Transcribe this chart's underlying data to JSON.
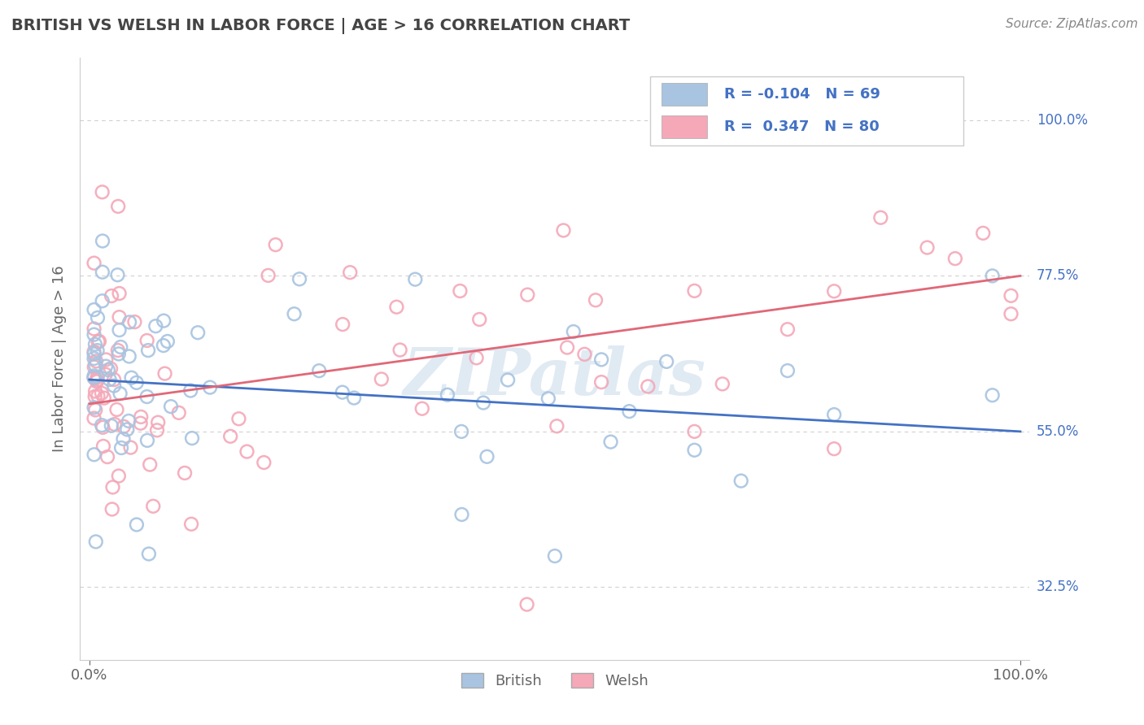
{
  "title": "BRITISH VS WELSH IN LABOR FORCE | AGE > 16 CORRELATION CHART",
  "source_text": "Source: ZipAtlas.com",
  "ylabel": "In Labor Force | Age > 16",
  "watermark": "ZIPatlas",
  "british_color": "#a8c4e0",
  "welsh_color": "#f4a8b8",
  "british_line_color": "#4472c4",
  "welsh_line_color": "#e06878",
  "british_R": -0.104,
  "british_N": 69,
  "welsh_R": 0.347,
  "welsh_N": 80,
  "ytick_vals": [
    0.325,
    0.55,
    0.775,
    1.0
  ],
  "ytick_labels": [
    "32.5%",
    "55.0%",
    "77.5%",
    "100.0%"
  ],
  "british_intercept": 0.625,
  "british_slope": -0.075,
  "welsh_intercept": 0.59,
  "welsh_slope": 0.185,
  "background_color": "#ffffff",
  "grid_color": "#d0d0d0",
  "title_color": "#444444",
  "axis_label_color": "#666666",
  "tick_color": "#666666",
  "legend_label_color": "#4472c4",
  "right_label_color": "#4472c4",
  "source_color": "#888888"
}
